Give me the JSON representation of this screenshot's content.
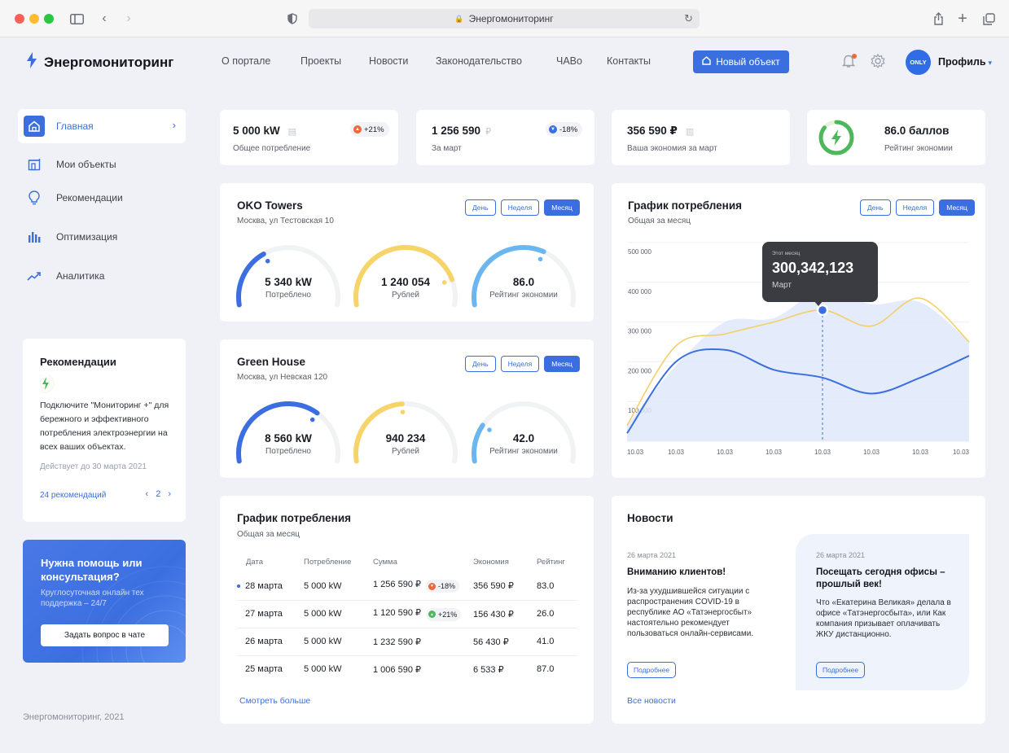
{
  "browser": {
    "url_text": "Энергомониторинг"
  },
  "header": {
    "brand": "Энергомониторинг",
    "nav": [
      "О портале",
      "Проекты",
      "Новости",
      "Законодательство",
      "ЧАВо",
      "Контакты"
    ],
    "new_object_label": "Новый объект",
    "avatar_text": "ONLY",
    "profile_label": "Профиль"
  },
  "sidebar": {
    "items": [
      {
        "label": "Главная",
        "icon": "home-icon",
        "active": true
      },
      {
        "label": "Мои объекты",
        "icon": "building-icon"
      },
      {
        "label": "Рекомендации",
        "icon": "lightbulb-icon"
      },
      {
        "label": "Оптимизация",
        "icon": "bars-icon"
      },
      {
        "label": "Аналитика",
        "icon": "trend-icon"
      }
    ],
    "recommendations": {
      "title": "Рекомендации",
      "text": "Подключите \"Мониторинг +\" для бережного и эффективного потребления электроэнергии на всех ваших объектах.",
      "valid_until": "Действует до 30 марта 2021",
      "count": "24 рекомендаций",
      "page": "2"
    },
    "help": {
      "title": "Нужна помощь или консультация?",
      "subtitle": "Круглосуточная онлайн тех поддержка – 24/7",
      "button": "Задать вопрос в чате"
    },
    "footer": "Энергомониторинг, 2021"
  },
  "stats": [
    {
      "value": "5 000 kW",
      "label": "Общее потребление",
      "badge": "+21%",
      "badge_color": "#f0673b"
    },
    {
      "value": "1 256 590",
      "unit": "₽",
      "label": "За март",
      "badge": "-18%",
      "badge_color": "#3b6fe0"
    },
    {
      "value": "356 590 ₽",
      "label": "Ваша экономия за март"
    },
    {
      "value": "86.0 баллов",
      "label": "Рейтинг экономии",
      "rating": 0.86
    }
  ],
  "range_buttons": [
    "День",
    "Неделя",
    "Месяц"
  ],
  "objects": [
    {
      "name": "OKO Towers",
      "address": "Москва, ул Тестовская 10",
      "gauges": [
        {
          "value": "5 340 kW",
          "label": "Потреблено",
          "fill": 0.35,
          "color": "#3b6fe0"
        },
        {
          "value": "1 240 054",
          "label": "Рублей",
          "fill": 0.85,
          "color": "#f7d46a"
        },
        {
          "value": "86.0",
          "label": "Рейтинг экономии",
          "fill": 0.62,
          "color": "#6cb6ef"
        }
      ]
    },
    {
      "name": "Green House",
      "address": "Москва, ул Невская 120",
      "gauges": [
        {
          "value": "8 560 kW",
          "label": "Потреблено",
          "fill": 0.68,
          "color": "#3b6fe0"
        },
        {
          "value": "940 234",
          "label": "Рублей",
          "fill": 0.48,
          "color": "#f7d46a"
        },
        {
          "value": "42.0",
          "label": "Рейтинг экономии",
          "fill": 0.22,
          "color": "#6cb6ef"
        }
      ]
    }
  ],
  "consumption_chart": {
    "title": "График потребления",
    "subtitle": "Общая за месяц",
    "tooltip": {
      "caption": "Этот месяц",
      "value": "300,342,123",
      "label": "Март"
    }
  },
  "chart_data": {
    "type": "area",
    "categories": [
      "10.03",
      "10.03",
      "10.03",
      "10.03",
      "10.03",
      "10.03",
      "10.03",
      "10.03"
    ],
    "y_ticks": [
      "500 000",
      "400 000",
      "300 000",
      "200 000",
      "100 000"
    ],
    "ylim": [
      0,
      500000
    ],
    "series": [
      {
        "color": "#dfe7fa",
        "values": [
          40000,
          190000,
          300000,
          310000,
          380000,
          345000,
          350000,
          250000
        ]
      },
      {
        "color": "#f3cf6a",
        "values": [
          40000,
          240000,
          270000,
          300000,
          330000,
          290000,
          360000,
          250000
        ]
      },
      {
        "color": "#3b6fe0",
        "values": [
          20000,
          200000,
          230000,
          180000,
          160000,
          120000,
          160000,
          215000
        ]
      }
    ],
    "grid": true
  },
  "table": {
    "title": "График потребления",
    "subtitle": "Общая за месяц",
    "headers": [
      "Дата",
      "Потребление",
      "Сумма",
      "Экономия",
      "Рейтинг"
    ],
    "rows": [
      {
        "date": "28 марта",
        "consumption": "5 000 kW",
        "sum": "1 256 590 ₽",
        "badge": "-18%",
        "badge_color": "#f0673b",
        "saving": "356 590 ₽",
        "rating": "83.0",
        "marked": true
      },
      {
        "date": "27 марта",
        "consumption": "5 000 kW",
        "sum": "1 120 590 ₽",
        "badge": "+21%",
        "badge_color": "#4cb85b",
        "saving": "156 430 ₽",
        "rating": "26.0"
      },
      {
        "date": "26 марта",
        "consumption": "5 000 kW",
        "sum": "1 232 590 ₽",
        "saving": "56 430 ₽",
        "rating": "41.0"
      },
      {
        "date": "25 марта",
        "consumption": "5 000 kW",
        "sum": "1 006 590 ₽",
        "saving": "6 533 ₽",
        "rating": "87.0"
      }
    ],
    "more_link": "Смотреть больше"
  },
  "news": {
    "title": "Новости",
    "items": [
      {
        "date": "26 марта 2021",
        "title": "Вниманию клиентов!",
        "text": "Из-за ухудшившейся ситуации с распространения COVID-19 в республике АО «Татэнергосбыт» настоятельно рекомендует пользоваться онлайн-сервисами.",
        "button": "Подробнее"
      },
      {
        "date": "26 марта 2021",
        "title": "Посещать сегодня офисы – прошлый век!",
        "text": "Что «Екатерина Великая» делала в офисе «Татэнергосбыта», или Как компания призывает оплачивать ЖКУ дистанционно.",
        "button": "Подробнее"
      }
    ],
    "all_link": "Все новости"
  }
}
